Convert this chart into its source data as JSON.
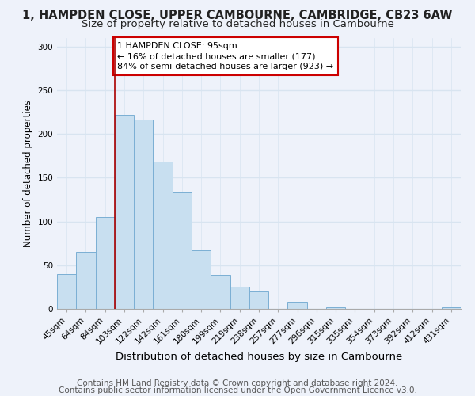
{
  "title": "1, HAMPDEN CLOSE, UPPER CAMBOURNE, CAMBRIDGE, CB23 6AW",
  "subtitle": "Size of property relative to detached houses in Cambourne",
  "xlabel": "Distribution of detached houses by size in Cambourne",
  "ylabel": "Number of detached properties",
  "categories": [
    "45sqm",
    "64sqm",
    "84sqm",
    "103sqm",
    "122sqm",
    "142sqm",
    "161sqm",
    "180sqm",
    "199sqm",
    "219sqm",
    "238sqm",
    "257sqm",
    "277sqm",
    "296sqm",
    "315sqm",
    "335sqm",
    "354sqm",
    "373sqm",
    "392sqm",
    "412sqm",
    "431sqm"
  ],
  "values": [
    40,
    65,
    105,
    222,
    216,
    168,
    133,
    67,
    39,
    25,
    20,
    0,
    8,
    0,
    2,
    0,
    0,
    0,
    0,
    0,
    2
  ],
  "bar_color": "#c8dff0",
  "bar_edge_color": "#7bafd4",
  "vline_color": "#aa0000",
  "annotation_text": "1 HAMPDEN CLOSE: 95sqm\n← 16% of detached houses are smaller (177)\n84% of semi-detached houses are larger (923) →",
  "annotation_box_edge_color": "#cc0000",
  "annotation_box_face_color": "#ffffff",
  "ylim": [
    0,
    310
  ],
  "grid_color": "#d8e4f0",
  "footer_line1": "Contains HM Land Registry data © Crown copyright and database right 2024.",
  "footer_line2": "Contains public sector information licensed under the Open Government Licence v3.0.",
  "title_fontsize": 10.5,
  "subtitle_fontsize": 9.5,
  "xlabel_fontsize": 9.5,
  "ylabel_fontsize": 8.5,
  "tick_fontsize": 7.5,
  "annotation_fontsize": 8,
  "footer_fontsize": 7.5,
  "background_color": "#eef2fa"
}
